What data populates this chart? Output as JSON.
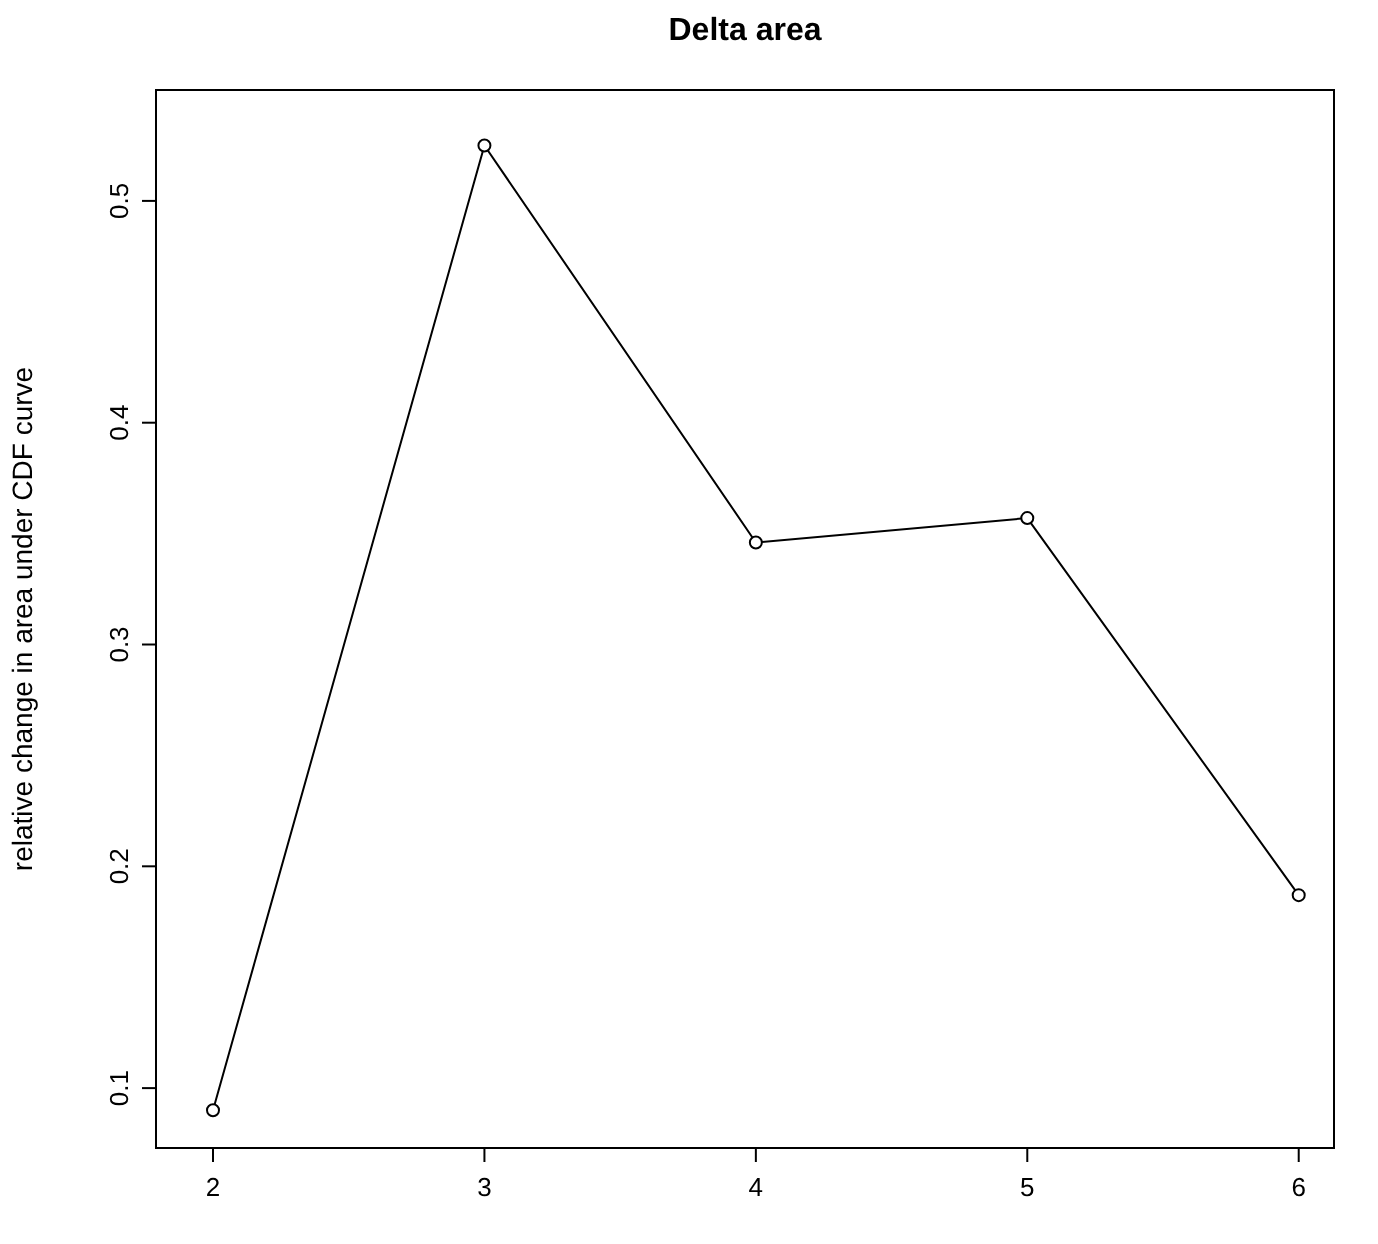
{
  "chart_data": {
    "type": "line",
    "title": "Delta area",
    "ylabel": "relative change in area under CDF curve",
    "x": [
      2,
      3,
      4,
      5,
      6
    ],
    "series": [
      {
        "color": "#000000",
        "values": [
          0.09,
          0.525,
          0.346,
          0.357,
          0.187
        ]
      }
    ],
    "xlim": [
      1.79,
      6.13
    ],
    "xticks": [
      2,
      3,
      4,
      5,
      6
    ],
    "ylim": [
      0.073,
      0.55
    ],
    "yticks": [
      0.1,
      0.2,
      0.3,
      0.4,
      0.5
    ],
    "grid": false,
    "marker": "circle",
    "line_style": "solid"
  }
}
